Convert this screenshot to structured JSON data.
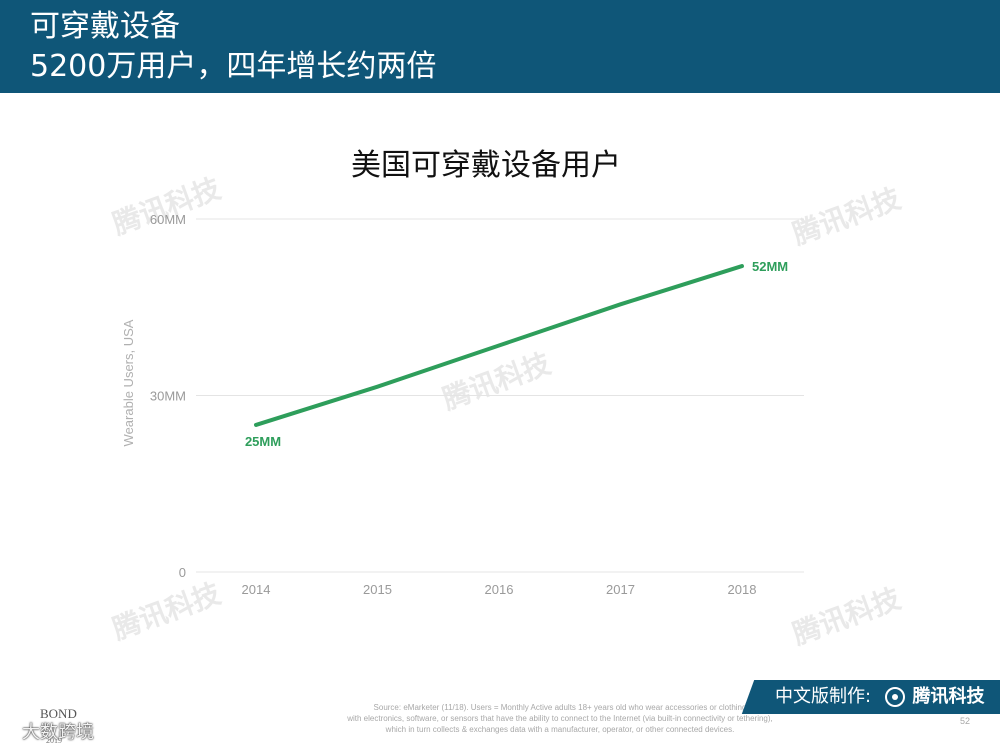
{
  "header": {
    "title": "可穿戴设备",
    "subtitle": "5200万用户，四年增长约两倍"
  },
  "chart_data": {
    "type": "line",
    "title": "美国可穿戴设备用户",
    "ylabel": "Wearable Users, USA",
    "xlabel": "",
    "categories": [
      "2014",
      "2015",
      "2016",
      "2017",
      "2018"
    ],
    "values": [
      25,
      31.5,
      38.5,
      45.5,
      52
    ],
    "ylim": [
      0,
      60
    ],
    "yticks": [
      0,
      30,
      60
    ],
    "ytick_labels": [
      "0",
      "30MM",
      "60MM"
    ],
    "data_labels": [
      {
        "index": 0,
        "text": "25MM"
      },
      {
        "index": 4,
        "text": "52MM"
      }
    ],
    "grid": true,
    "legend": "none",
    "colors": {
      "line": "#2e9e5b",
      "grid": "#e4e4e4",
      "tick": "#9a9a9a"
    }
  },
  "watermark": "腾讯科技",
  "footer": {
    "source_lines": [
      "Source: eMarketer (11/18). Users = Monthly Active adults 18+ years old who wear accessories or clothing",
      "with electronics, software, or sensors that have the ability to connect to the Internet (via built-in connectivity or tethering),",
      "which in turn collects & exchanges data with a manufacturer, operator, or other connected devices."
    ],
    "page_number": "52",
    "bond": "BOND",
    "bond_year": "2019",
    "wechat_label": "大数跨境",
    "credit": "中文版制作:",
    "credit_brand": "腾讯科技"
  }
}
